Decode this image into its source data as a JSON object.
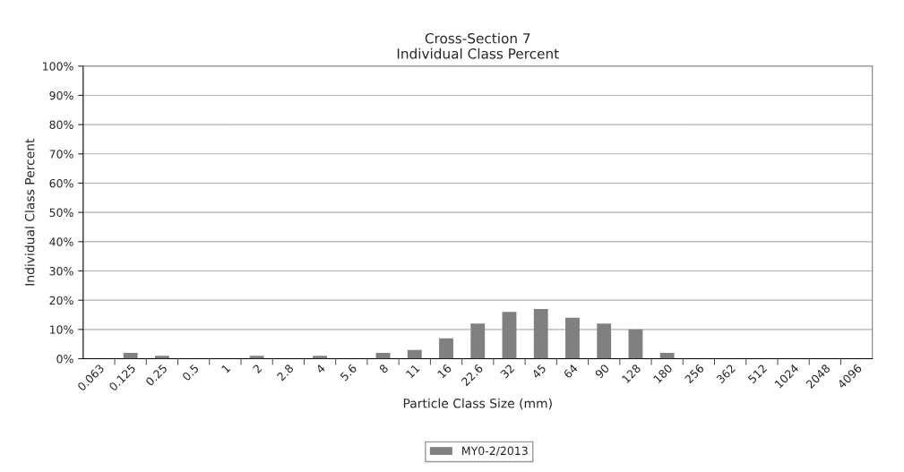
{
  "chart_data": {
    "type": "bar",
    "title": "Cross-Section 7\nIndividual Class Percent",
    "xlabel": "Particle Class Size (mm)",
    "ylabel": "Individual Class Percent",
    "categories": [
      "0.063",
      "0.125",
      "0.25",
      "0.5",
      "1",
      "2",
      "2.8",
      "4",
      "5.6",
      "8",
      "11",
      "16",
      "22.6",
      "32",
      "45",
      "64",
      "90",
      "128",
      "180",
      "256",
      "362",
      "512",
      "1024",
      "2048",
      "4096"
    ],
    "series": [
      {
        "name": "MY0-2/2013",
        "color": "#808080",
        "values": [
          0,
          2,
          1,
          0,
          0,
          1,
          0,
          1,
          0,
          2,
          3,
          7,
          12,
          16,
          17,
          14,
          12,
          10,
          2,
          0,
          0,
          0,
          0,
          0,
          0
        ]
      }
    ],
    "ylim": [
      0,
      100
    ],
    "yticks": [
      {
        "value": 0,
        "label": "0%"
      },
      {
        "value": 10,
        "label": "10%"
      },
      {
        "value": 20,
        "label": "20%"
      },
      {
        "value": 30,
        "label": "30%"
      },
      {
        "value": 40,
        "label": "40%"
      },
      {
        "value": 50,
        "label": "50%"
      },
      {
        "value": 60,
        "label": "60%"
      },
      {
        "value": 70,
        "label": "70%"
      },
      {
        "value": 80,
        "label": "80%"
      },
      {
        "value": 90,
        "label": "90%"
      },
      {
        "value": 100,
        "label": "100%"
      }
    ],
    "grid": "y",
    "legend": "bottom"
  }
}
